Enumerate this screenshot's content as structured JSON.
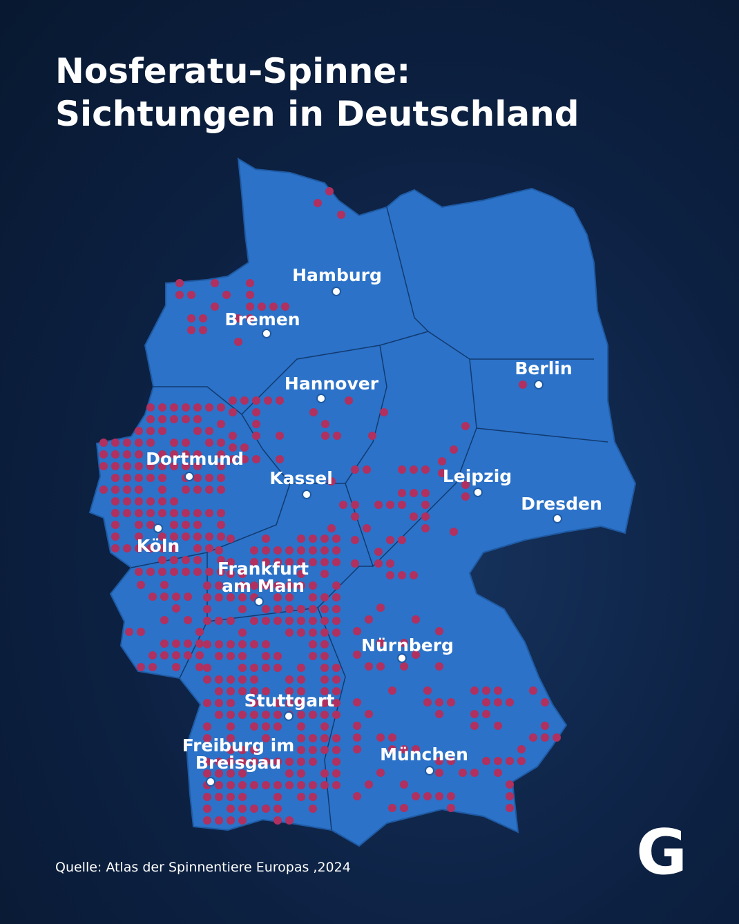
{
  "header": {
    "title": [
      "Nosferatu-Spinne:",
      "Sichtungen in Deutschland"
    ]
  },
  "cities": [
    {
      "lines": [
        "Hamburg"
      ]
    },
    {
      "lines": [
        "Bremen"
      ]
    },
    {
      "lines": [
        "Hannover"
      ]
    },
    {
      "lines": [
        "Berlin"
      ]
    },
    {
      "lines": [
        "Dortmund"
      ]
    },
    {
      "lines": [
        "Kassel"
      ]
    },
    {
      "lines": [
        "Leipzig"
      ]
    },
    {
      "lines": [
        "Dresden"
      ]
    },
    {
      "lines": [
        "Köln"
      ]
    },
    {
      "lines": [
        "Frankfurt",
        "am Main"
      ]
    },
    {
      "lines": [
        "Nürnberg"
      ]
    },
    {
      "lines": [
        "Stuttgart"
      ]
    },
    {
      "lines": [
        "Freiburg im",
        "Breisgau"
      ]
    },
    {
      "lines": [
        "München"
      ]
    }
  ],
  "footer": {
    "source": "Quelle: Atlas der Spinnentiere Europas ,2024",
    "logo": "G"
  }
}
